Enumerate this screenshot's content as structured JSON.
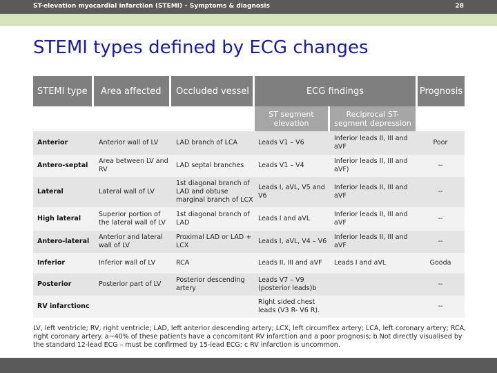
{
  "header": {
    "running_title": "ST-elevation myocardial infarction (STEMI) – Symptoms & diagnosis",
    "page_number": "28"
  },
  "title": "STEMI types defined by ECG changes",
  "table": {
    "columns": [
      "STEMI type",
      "Area affected",
      "Occluded vessel",
      "ECG findings",
      "Prognosis"
    ],
    "subcolumns": [
      "ST segment elevation",
      "Reciprocal ST-segment depression"
    ],
    "rows": [
      {
        "type": "Anterior",
        "area": "Anterior wall of LV",
        "vessel": "LAD branch of LCA",
        "st_elev": "Leads V1 – V6",
        "recip": "Inferior leads II, III and aVF",
        "prognosis": "Poor"
      },
      {
        "type": "Antero-septal",
        "area": "Area between LV and RV",
        "vessel": "LAD septal branches",
        "st_elev": "Leads V1 – V4",
        "recip": "Inferior leads II, III and aVF)",
        "prognosis": "--"
      },
      {
        "type": "Lateral",
        "area": "Lateral wall of LV",
        "vessel": "1st diagonal branch of LAD and obtuse marginal branch of LCX",
        "st_elev": "Leads I, aVL, V5 and V6",
        "recip": "Inferior leads II, III and aVF",
        "prognosis": "--"
      },
      {
        "type": "High lateral",
        "area": "Superior portion of the lateral wall of LV",
        "vessel": "1st diagonal branch of LAD",
        "st_elev": "Leads I and aVL",
        "recip": "Inferior leads II, III and aVF",
        "prognosis": "--"
      },
      {
        "type": "Antero-lateral",
        "area": "Anterior and lateral wall of LV",
        "vessel": "Proximal LAD or LAD + LCX",
        "st_elev": "Leads I, aVL, V4 – V6",
        "recip": "Inferior leads II, III and aVF",
        "prognosis": "--"
      },
      {
        "type": "Inferior",
        "area": "Inferior wall of LV",
        "vessel": "RCA",
        "st_elev": "Leads II, III and aVF",
        "recip": "Leads I and aVL",
        "prognosis": "Gooda"
      },
      {
        "type": "Posterior",
        "area": "Posterior part of LV",
        "vessel": "Posterior descending artery",
        "st_elev": "Leads V7 – V9 (posterior leads)b",
        "recip": "",
        "prognosis": "--"
      },
      {
        "type": "RV infarctionc",
        "area": "",
        "vessel": "",
        "st_elev": "Right sided chest leads (V3 R- V6 R).",
        "recip": "",
        "prognosis": "--"
      }
    ]
  },
  "footnote": "LV, left ventricle; RV, right ventricle; LAD, left anterior descending artery; LCX, left circumflex artery; LCA, left coronary artery; RCA, right coronary artery. a~40% of these patients have a concomitant RV infarction and a poor prognosis; b Not directly visualised by the standard 12-lead ECG – must be confirmed by 15-lead ECG; c RV infarction is uncommon."
}
